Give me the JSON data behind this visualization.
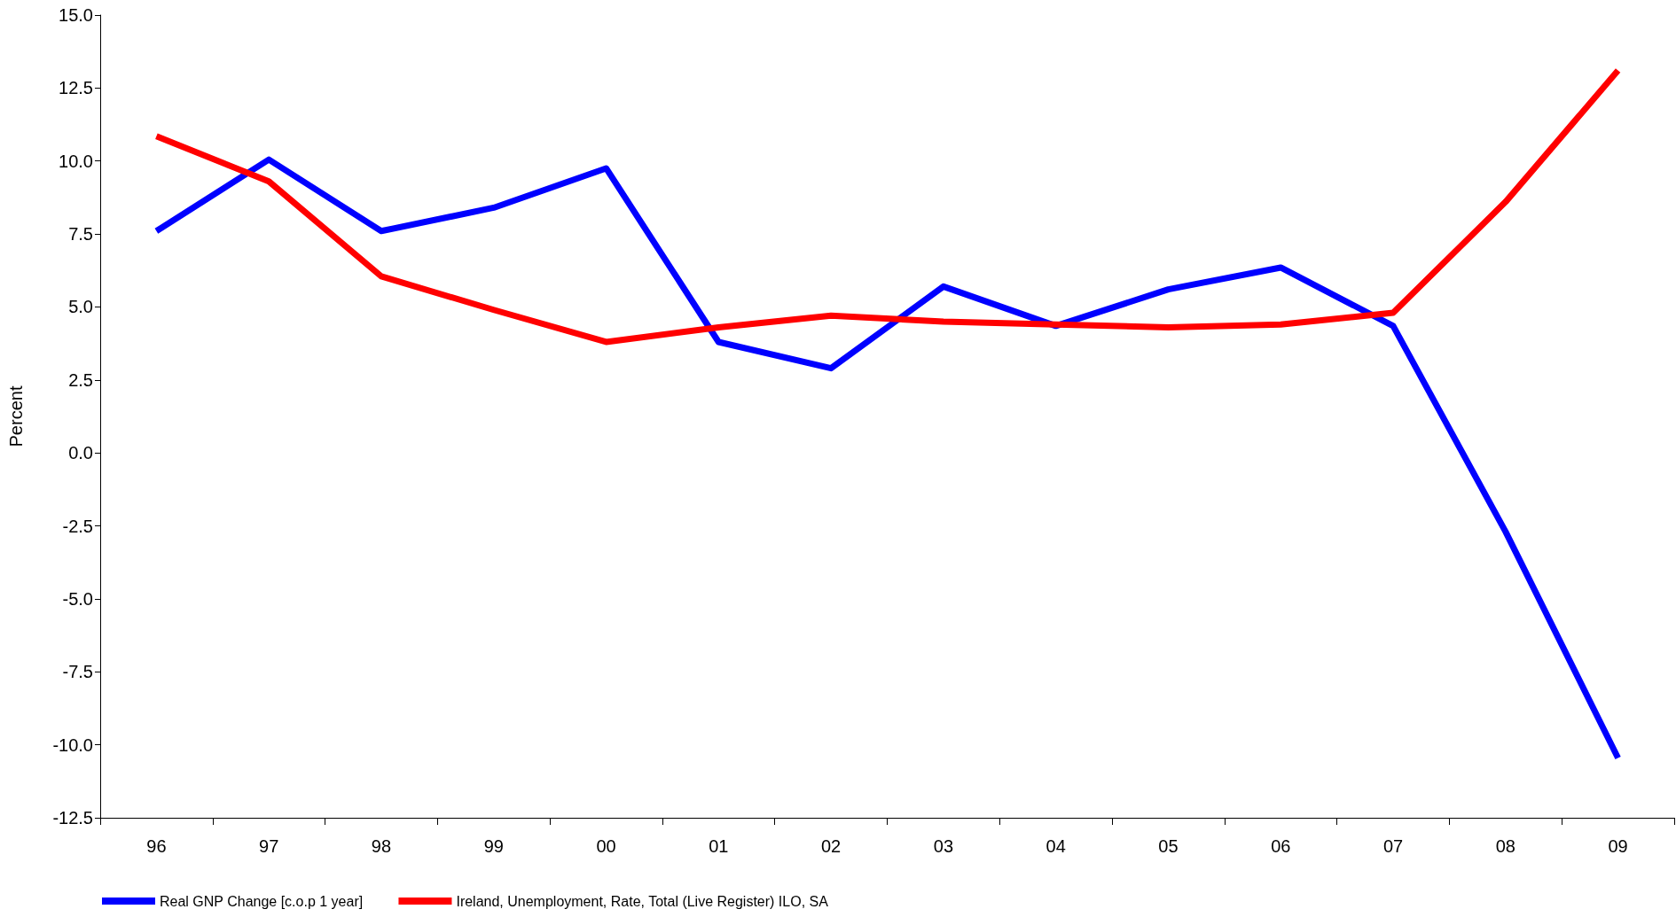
{
  "chart_data": {
    "type": "line",
    "ylabel": "Percent",
    "categories": [
      "96",
      "97",
      "98",
      "99",
      "00",
      "01",
      "02",
      "03",
      "04",
      "05",
      "06",
      "07",
      "08",
      "09"
    ],
    "series": [
      {
        "name": "Real GNP Change [c.o.p 1 year]",
        "color": "#0000ff",
        "values": [
          7.6,
          10.05,
          7.6,
          8.4,
          9.75,
          3.8,
          2.9,
          5.7,
          4.35,
          5.6,
          6.35,
          4.35,
          -2.7,
          -10.45
        ]
      },
      {
        "name": "Ireland, Unemployment, Rate, Total (Live Register) ILO, SA",
        "color": "#ff0000",
        "values": [
          10.85,
          9.3,
          6.05,
          4.9,
          3.8,
          4.3,
          4.7,
          4.5,
          4.4,
          4.3,
          4.4,
          4.8,
          8.6,
          13.1
        ]
      }
    ],
    "ylim": [
      -12.5,
      15
    ],
    "yticks": [
      {
        "value": -12.5,
        "label": "-12.5"
      },
      {
        "value": -10,
        "label": "-10.0"
      },
      {
        "value": -7.5,
        "label": "-7.5"
      },
      {
        "value": -5,
        "label": "-5.0"
      },
      {
        "value": -2.5,
        "label": "-2.5"
      },
      {
        "value": 0,
        "label": "0.0"
      },
      {
        "value": 2.5,
        "label": "2.5"
      },
      {
        "value": 5,
        "label": "5.0"
      },
      {
        "value": 7.5,
        "label": "7.5"
      },
      {
        "value": 10,
        "label": "10.0"
      },
      {
        "value": 12.5,
        "label": "12.5"
      },
      {
        "value": 15,
        "label": "15.0"
      }
    ],
    "grid": false,
    "legend": "bottom left",
    "marker": "none",
    "line_style": "solid"
  }
}
